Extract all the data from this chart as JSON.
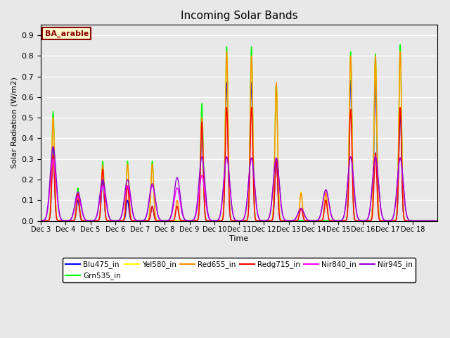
{
  "title": "Incoming Solar Bands",
  "xlabel": "Time",
  "ylabel": "Solar Radiation (W/m2)",
  "annotation": "BA_arable",
  "ylim": [
    0.0,
    0.95
  ],
  "yticks": [
    0.0,
    0.1,
    0.2,
    0.3,
    0.4,
    0.5,
    0.6,
    0.7,
    0.8,
    0.9
  ],
  "series_order": [
    "Blu475_in",
    "Grn535_in",
    "Yel580_in",
    "Red655_in",
    "Redg715_in",
    "Nir840_in",
    "Nir945_in"
  ],
  "series": {
    "Blu475_in": {
      "color": "#0000FF",
      "lw": 1.0
    },
    "Grn535_in": {
      "color": "#00FF00",
      "lw": 1.0
    },
    "Yel580_in": {
      "color": "#FFFF00",
      "lw": 1.0
    },
    "Red655_in": {
      "color": "#FF8C00",
      "lw": 1.0
    },
    "Redg715_in": {
      "color": "#FF0000",
      "lw": 1.0
    },
    "Nir840_in": {
      "color": "#FF00FF",
      "lw": 1.0
    },
    "Nir945_in": {
      "color": "#9400D3",
      "lw": 1.0
    }
  },
  "bg_color": "#E8E8E8",
  "fig_bg_color": "#E8E8E8",
  "grid_color": "#FFFFFF",
  "x_tick_labels": [
    "Dec 3",
    "Dec 4",
    "Dec 5",
    "Dec 6",
    "Dec 7",
    "Dec 8",
    "Dec 9",
    "Dec 10",
    "Dec 11",
    "Dec 12",
    "Dec 13",
    "Dec 14",
    "Dec 15",
    "Dec 16",
    "Dec 17",
    "Dec 18"
  ],
  "peaks": {
    "Grn535_in": [
      0.53,
      0.16,
      0.29,
      0.29,
      0.29,
      0.0,
      0.57,
      0.845,
      0.845,
      0.67,
      0.0,
      0.0,
      0.82,
      0.81,
      0.855,
      0.0
    ],
    "Yel580_in": [
      0.5,
      0.135,
      0.27,
      0.275,
      0.275,
      0.0,
      0.5,
      0.82,
      0.8,
      0.67,
      0.14,
      0.14,
      0.8,
      0.8,
      0.82,
      0.0
    ],
    "Red655_in": [
      0.5,
      0.135,
      0.27,
      0.275,
      0.275,
      0.1,
      0.5,
      0.82,
      0.8,
      0.67,
      0.135,
      0.135,
      0.8,
      0.8,
      0.82,
      0.0
    ],
    "Blu475_in": [
      0.35,
      0.1,
      0.2,
      0.1,
      0.07,
      0.0,
      0.43,
      0.67,
      0.67,
      0.3,
      0.0,
      0.0,
      0.68,
      0.68,
      0.52,
      0.0
    ],
    "Redg715_in": [
      0.32,
      0.13,
      0.25,
      0.17,
      0.07,
      0.07,
      0.48,
      0.55,
      0.55,
      0.3,
      0.06,
      0.1,
      0.54,
      0.33,
      0.55,
      0.0
    ],
    "Nir840_in": [
      0.3,
      0.12,
      0.17,
      0.17,
      0.17,
      0.16,
      0.22,
      0.31,
      0.305,
      0.305,
      0.06,
      0.15,
      0.31,
      0.31,
      0.305,
      0.0
    ],
    "Nir945_in": [
      0.36,
      0.14,
      0.2,
      0.2,
      0.18,
      0.21,
      0.31,
      0.31,
      0.305,
      0.305,
      0.06,
      0.15,
      0.31,
      0.31,
      0.305,
      0.0
    ]
  },
  "narrow_series": [
    "Grn535_in",
    "Yel580_in",
    "Red655_in",
    "Blu475_in",
    "Redg715_in"
  ],
  "wide_series": [
    "Nir840_in",
    "Nir945_in"
  ],
  "narrow_sigma": 0.055,
  "wide_sigma": 0.12,
  "ppd": 200,
  "n_days": 16
}
